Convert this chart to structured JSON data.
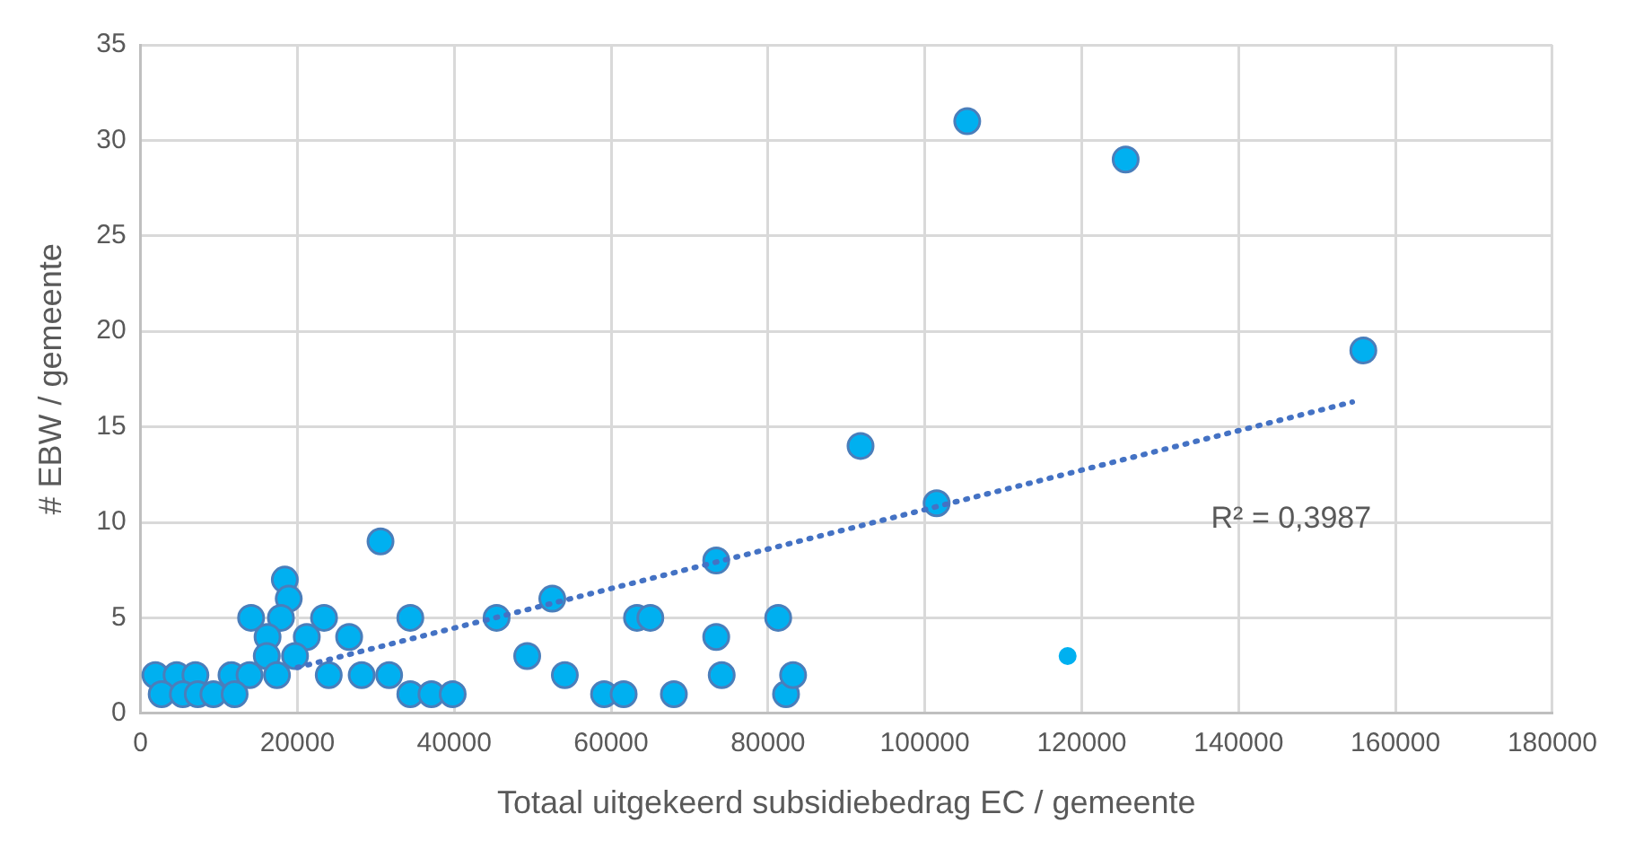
{
  "chart_data": {
    "type": "scatter",
    "xlabel": "Totaal uitgekeerd subsidiebedrag EC / gemeente",
    "ylabel": "# EBW / gemeente",
    "xlim": [
      0,
      180000
    ],
    "xticks": [
      0,
      20000,
      40000,
      60000,
      80000,
      100000,
      120000,
      140000,
      160000,
      180000
    ],
    "ylim": [
      0,
      35
    ],
    "yticks": [
      0,
      5,
      10,
      15,
      20,
      25,
      30,
      35
    ],
    "grid": true,
    "legend": false,
    "marker": "circle",
    "annotations": [
      "R² = 0,3987"
    ],
    "series": [
      {
        "color": "#00b0f0",
        "x": [
          105400,
          125600,
          155900,
          101500,
          45400,
          52500,
          49300,
          54100,
          59100,
          61600,
          68000,
          63300,
          65000,
          73400,
          73400,
          74100,
          81300,
          82300,
          83200,
          91800,
          18400,
          18900,
          14100,
          17900,
          23400,
          34400,
          16200,
          19700,
          21200,
          26600,
          16100,
          19700,
          17400,
          24000,
          28200,
          31700,
          1900,
          4600,
          7000,
          9700,
          11600,
          13900,
          2700,
          5400,
          7300,
          9300,
          12000,
          34400,
          37100,
          39800,
          30600
        ],
        "values": [
          31,
          29,
          19,
          11,
          5,
          6,
          3,
          2,
          1,
          1,
          1,
          5,
          5,
          8,
          4,
          2,
          5,
          1,
          2,
          14,
          7,
          6,
          5,
          5,
          5,
          5,
          4,
          null,
          4,
          4,
          3,
          3,
          2,
          2,
          2,
          2,
          2,
          2,
          2,
          null,
          2,
          2,
          1,
          1,
          1,
          1,
          1,
          1,
          1,
          1,
          9
        ]
      },
      {
        "color": "#00b0f0",
        "marker": "circle",
        "x": [
          118200
        ],
        "values": [
          3
        ]
      },
      {
        "type": "line",
        "color": "#4472c4",
        "line_style": "dotted",
        "marker": "none",
        "x": [
          20000,
          154500
        ],
        "values": [
          2.4,
          16.3
        ]
      }
    ]
  }
}
